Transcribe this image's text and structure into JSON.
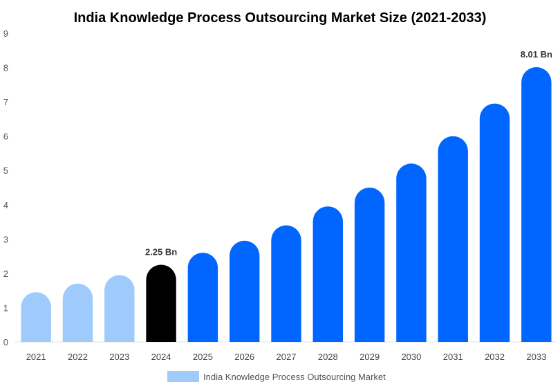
{
  "chart_data": {
    "type": "bar",
    "title": "India Knowledge Process Outsourcing Market Size (2021-2033)",
    "xlabel": "",
    "ylabel": "",
    "ylim": [
      0,
      9
    ],
    "yticks": [
      "0",
      "1",
      "2",
      "3",
      "4",
      "5",
      "6",
      "7",
      "8",
      "9"
    ],
    "categories": [
      "2021",
      "2022",
      "2023",
      "2024",
      "2025",
      "2026",
      "2027",
      "2028",
      "2029",
      "2030",
      "2031",
      "2032",
      "2033"
    ],
    "series": [
      {
        "name": "India Knowledge Process Outsourcing Market",
        "values": [
          1.45,
          1.7,
          1.95,
          2.25,
          2.6,
          2.95,
          3.4,
          3.95,
          4.5,
          5.2,
          6.0,
          6.95,
          8.01
        ]
      }
    ],
    "data_labels": [
      {
        "category": "2024",
        "text": "2.25 Bn"
      },
      {
        "category": "2033",
        "text": "8.01 Bn"
      }
    ],
    "legend_position": "bottom-center",
    "grid": false,
    "colors": {
      "historical": "#9fcbfc",
      "base_year": "#000000",
      "forecast": "#0066ff",
      "legend_swatch": "#9fcbfc"
    },
    "bar_groups": {
      "historical": [
        "2021",
        "2022",
        "2023"
      ],
      "base_year": [
        "2024"
      ],
      "forecast": [
        "2025",
        "2026",
        "2027",
        "2028",
        "2029",
        "2030",
        "2031",
        "2032",
        "2033"
      ]
    }
  }
}
